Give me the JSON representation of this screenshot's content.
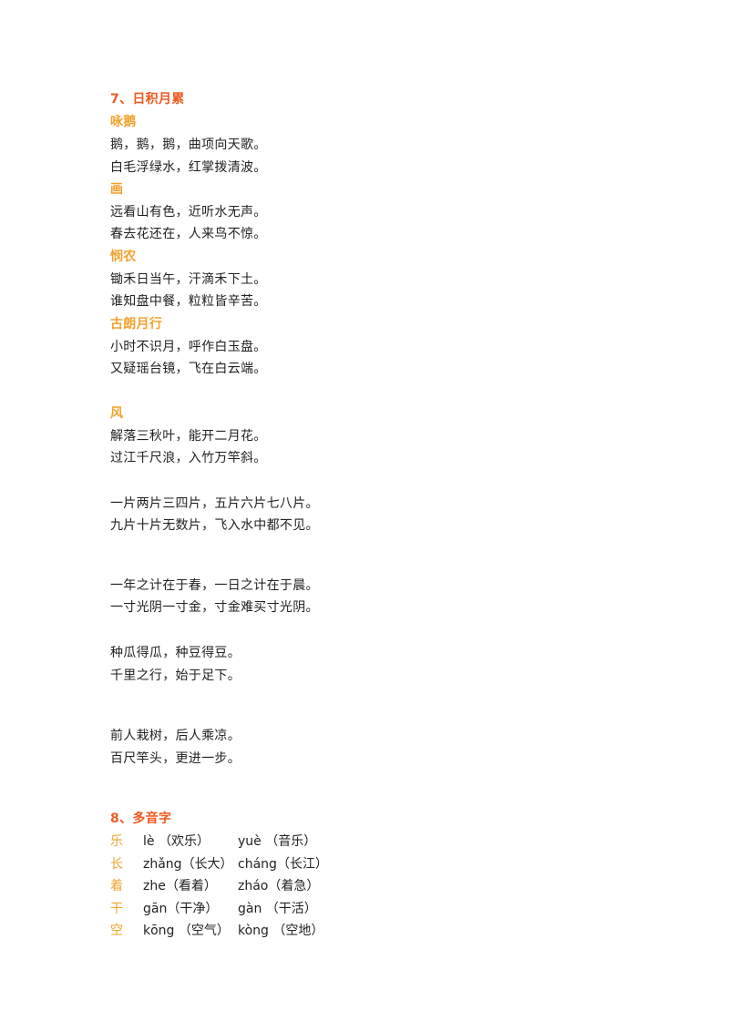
{
  "section7": {
    "heading": "7、日积月累",
    "poems": [
      {
        "title": "咏鹅",
        "lines": [
          "鹅，鹅，鹅，曲项向天歌。",
          "白毛浮绿水，红掌拨清波。"
        ]
      },
      {
        "title": "画",
        "lines": [
          "远看山有色，近听水无声。",
          "春去花还在，人来鸟不惊。"
        ]
      },
      {
        "title": "悯农",
        "lines": [
          "锄禾日当午，汗滴禾下土。",
          "谁知盘中餐，粒粒皆辛苦。"
        ]
      },
      {
        "title": "古朗月行",
        "lines": [
          "小时不识月，呼作白玉盘。",
          "又疑瑶台镜，飞在白云端。"
        ]
      },
      {
        "title": "风",
        "lines": [
          "解落三秋叶，能开二月花。",
          "过江千尺浪，入竹万竿斜。"
        ]
      }
    ],
    "verses": [
      [
        "一片两片三四片，五片六片七八片。",
        "九片十片无数片，飞入水中都不见。"
      ],
      [
        "一年之计在于春，一日之计在于晨。",
        "一寸光阴一寸金，寸金难买寸光阴。"
      ],
      [
        "种瓜得瓜，种豆得豆。",
        "千里之行，始于足下。"
      ],
      [
        "前人栽树，后人乘凉。",
        "百尺竿头，更进一步。"
      ]
    ]
  },
  "section8": {
    "heading": "8、多音字",
    "items": [
      {
        "char": "乐",
        "r1": "lè （欢乐）",
        "r2": "yuè （音乐）"
      },
      {
        "char": "长",
        "r1": "zhǎng（长大）",
        "r2": "cháng（长江）"
      },
      {
        "char": "着",
        "r1": "zhe（看着）",
        "r2": "zháo（着急）"
      },
      {
        "char": "干",
        "r1": "gān（干净）",
        "r2": "gàn （干活）"
      },
      {
        "char": "空",
        "r1": "kōng （空气）",
        "r2": "kòng （空地）"
      }
    ]
  },
  "colors": {
    "section_heading": "#ee5a1f",
    "poem_title": "#f2a22c",
    "body_text": "#222222"
  }
}
